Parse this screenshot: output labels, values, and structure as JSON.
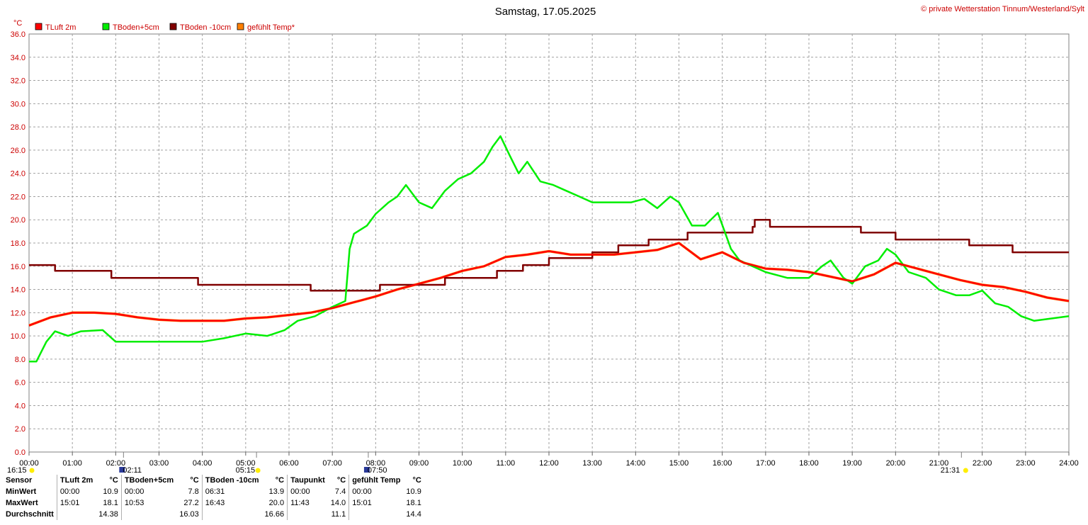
{
  "header": {
    "title": "Samstag, 17.05.2025",
    "copyright": "© private Wetterstation Tinnum/Westerland/Sylt",
    "unit": "°C"
  },
  "legend": [
    {
      "label": "TLuft 2m",
      "color": "#ff0000"
    },
    {
      "label": "TBoden+5cm",
      "color": "#00ee00"
    },
    {
      "label": "TBoden -10cm",
      "color": "#800000"
    },
    {
      "label": "gefühlt Temp*",
      "color": "#ff8000"
    }
  ],
  "events": [
    {
      "label": "16:15",
      "hour": 0.0,
      "icon": "sun-icon"
    },
    {
      "label": "02:11",
      "hour": 2.18,
      "icon": "moon-icon"
    },
    {
      "label": "05:15",
      "hour": 5.25,
      "icon": "sun-icon"
    },
    {
      "label": "07:50",
      "hour": 7.83,
      "icon": "moon-icon"
    },
    {
      "label": "21:31",
      "hour": 21.52,
      "icon": "sun-icon"
    }
  ],
  "chart_data": {
    "type": "line",
    "title": "Samstag, 17.05.2025",
    "ylabel": "°C",
    "xlim": [
      0,
      24
    ],
    "ylim": [
      0,
      36
    ],
    "grid": true,
    "legend_position": "top-left",
    "x_ticks": [
      "00:00",
      "01:00",
      "02:00",
      "03:00",
      "04:00",
      "05:00",
      "06:00",
      "07:00",
      "08:00",
      "09:00",
      "10:00",
      "11:00",
      "12:00",
      "13:00",
      "14:00",
      "15:00",
      "16:00",
      "17:00",
      "18:00",
      "19:00",
      "20:00",
      "21:00",
      "22:00",
      "23:00",
      "24:00"
    ],
    "y_ticks": [
      "0.0",
      "2.0",
      "4.0",
      "6.0",
      "8.0",
      "10.0",
      "12.0",
      "14.0",
      "16.0",
      "18.0",
      "20.0",
      "22.0",
      "24.0",
      "26.0",
      "28.0",
      "30.0",
      "32.0",
      "34.0",
      "36.0"
    ],
    "series": [
      {
        "name": "TLuft 2m",
        "color": "#ff0000",
        "x": [
          0,
          0.5,
          1,
          1.5,
          2,
          2.5,
          3,
          3.5,
          4,
          4.5,
          5,
          5.5,
          6,
          6.5,
          7,
          7.5,
          8,
          8.5,
          9,
          9.5,
          10,
          10.5,
          11,
          11.5,
          12,
          12.5,
          13,
          13.5,
          14,
          14.5,
          15,
          15.5,
          16,
          16.5,
          17,
          17.5,
          18,
          18.5,
          19,
          19.5,
          20,
          20.5,
          21,
          21.5,
          22,
          22.5,
          23,
          23.5,
          24
        ],
        "y": [
          10.9,
          11.6,
          12.0,
          12.0,
          11.9,
          11.6,
          11.4,
          11.3,
          11.3,
          11.3,
          11.5,
          11.6,
          11.8,
          12.0,
          12.4,
          12.9,
          13.4,
          14.0,
          14.5,
          15.0,
          15.6,
          16.0,
          16.8,
          17.0,
          17.3,
          17.0,
          17.0,
          17.0,
          17.2,
          17.4,
          18.0,
          16.6,
          17.2,
          16.3,
          15.8,
          15.7,
          15.5,
          15.1,
          14.7,
          15.3,
          16.3,
          15.8,
          15.3,
          14.8,
          14.4,
          14.2,
          13.8,
          13.3,
          13.0
        ]
      },
      {
        "name": "TBoden+5cm",
        "color": "#00ee00",
        "x": [
          0,
          0.17,
          0.4,
          0.6,
          0.9,
          1.2,
          1.7,
          2.0,
          2.5,
          3.0,
          3.5,
          4.0,
          4.5,
          5.0,
          5.5,
          5.9,
          6.2,
          6.6,
          7.0,
          7.3,
          7.4,
          7.5,
          7.8,
          8.0,
          8.3,
          8.5,
          8.7,
          9.0,
          9.3,
          9.6,
          9.9,
          10.2,
          10.5,
          10.7,
          10.88,
          11.1,
          11.3,
          11.5,
          11.8,
          12.1,
          12.4,
          12.7,
          13.0,
          13.3,
          13.6,
          13.9,
          14.2,
          14.5,
          14.8,
          15.0,
          15.3,
          15.6,
          15.9,
          16.2,
          16.4,
          16.7,
          17.0,
          17.5,
          18.0,
          18.3,
          18.5,
          18.8,
          19.0,
          19.3,
          19.6,
          19.8,
          20.0,
          20.3,
          20.7,
          21.0,
          21.4,
          21.7,
          22.0,
          22.3,
          22.6,
          22.9,
          23.2,
          23.6,
          24.0
        ],
        "y": [
          7.8,
          7.8,
          9.5,
          10.4,
          10.0,
          10.4,
          10.5,
          9.5,
          9.5,
          9.5,
          9.5,
          9.5,
          9.8,
          10.2,
          10.0,
          10.5,
          11.3,
          11.7,
          12.5,
          13.0,
          17.5,
          18.8,
          19.5,
          20.5,
          21.5,
          22.0,
          23.0,
          21.5,
          21.0,
          22.5,
          23.5,
          24.0,
          25.0,
          26.3,
          27.2,
          25.5,
          24.0,
          25.0,
          23.3,
          23.0,
          22.5,
          22.0,
          21.5,
          21.5,
          21.5,
          21.5,
          21.8,
          21.0,
          22.0,
          21.5,
          19.5,
          19.5,
          20.6,
          17.5,
          16.5,
          16.0,
          15.5,
          15.0,
          15.0,
          16.0,
          16.5,
          15.0,
          14.5,
          16.0,
          16.5,
          17.5,
          17.0,
          15.5,
          15.0,
          14.0,
          13.5,
          13.5,
          13.9,
          12.8,
          12.5,
          11.7,
          11.3,
          11.5,
          11.7
        ]
      },
      {
        "name": "TBoden -10cm",
        "color": "#800000",
        "x": [
          0,
          0.6,
          0.6,
          1.9,
          1.9,
          3.9,
          3.9,
          6.5,
          6.5,
          8.1,
          8.1,
          9.6,
          9.6,
          10.8,
          10.8,
          11.4,
          11.4,
          12.0,
          12.0,
          13.0,
          13.0,
          13.6,
          13.6,
          14.3,
          14.3,
          15.2,
          15.2,
          16.7,
          16.7,
          16.75,
          16.75,
          17.1,
          17.1,
          19.2,
          19.2,
          20.0,
          20.0,
          21.7,
          21.7,
          22.7,
          22.7,
          24.0
        ],
        "y": [
          16.1,
          16.1,
          15.6,
          15.6,
          15.0,
          15.0,
          14.4,
          14.4,
          13.9,
          13.9,
          14.4,
          14.4,
          15.0,
          15.0,
          15.6,
          15.6,
          16.1,
          16.1,
          16.7,
          16.7,
          17.2,
          17.2,
          17.8,
          17.8,
          18.3,
          18.3,
          18.9,
          18.9,
          19.4,
          19.4,
          20.0,
          20.0,
          19.4,
          19.4,
          18.9,
          18.9,
          18.3,
          18.3,
          17.8,
          17.8,
          17.2,
          17.2
        ]
      },
      {
        "name": "gefühlt Temp*",
        "color": "#ff8000",
        "x": [
          0,
          0.5,
          1,
          1.5,
          2,
          2.5,
          3,
          3.5,
          4,
          4.5,
          5,
          5.5,
          6,
          6.5,
          7,
          7.5,
          8,
          8.5,
          9,
          9.5,
          10,
          10.5,
          11,
          11.5,
          12,
          12.5,
          13,
          13.5,
          14,
          14.5,
          15,
          15.5,
          16,
          16.5,
          17,
          17.5,
          18,
          18.5,
          19,
          19.5,
          20,
          20.5,
          21,
          21.5,
          22,
          22.5,
          23,
          23.5,
          24
        ],
        "y": [
          10.9,
          11.6,
          12.0,
          12.0,
          11.9,
          11.6,
          11.4,
          11.3,
          11.3,
          11.3,
          11.5,
          11.6,
          11.8,
          12.0,
          12.4,
          12.9,
          13.4,
          14.0,
          14.5,
          15.0,
          15.6,
          16.0,
          16.8,
          17.0,
          17.3,
          17.0,
          17.0,
          17.0,
          17.2,
          17.4,
          18.0,
          16.6,
          17.2,
          16.3,
          15.8,
          15.7,
          15.5,
          15.1,
          14.7,
          15.3,
          16.3,
          15.8,
          15.3,
          14.8,
          14.4,
          14.2,
          13.8,
          13.3,
          13.0
        ]
      }
    ]
  },
  "stats": {
    "header": [
      "Sensor",
      "TLuft 2m",
      "°C",
      "TBoden+5cm",
      "°C",
      "TBoden -10cm",
      "°C",
      "Taupunkt",
      "°C",
      "gefühlt Temp",
      "°C"
    ],
    "rows": [
      [
        "MinWert",
        "00:00",
        "10.9",
        "00:00",
        "7.8",
        "06:31",
        "13.9",
        "00:00",
        "7.4",
        "00:00",
        "10.9"
      ],
      [
        "MaxWert",
        "15:01",
        "18.1",
        "10:53",
        "27.2",
        "16:43",
        "20.0",
        "11:43",
        "14.0",
        "15:01",
        "18.1"
      ],
      [
        "Durchschnitt",
        "",
        "14.38",
        "",
        "16.03",
        "",
        "16.66",
        "",
        "11.1",
        "",
        "14.4"
      ]
    ]
  }
}
